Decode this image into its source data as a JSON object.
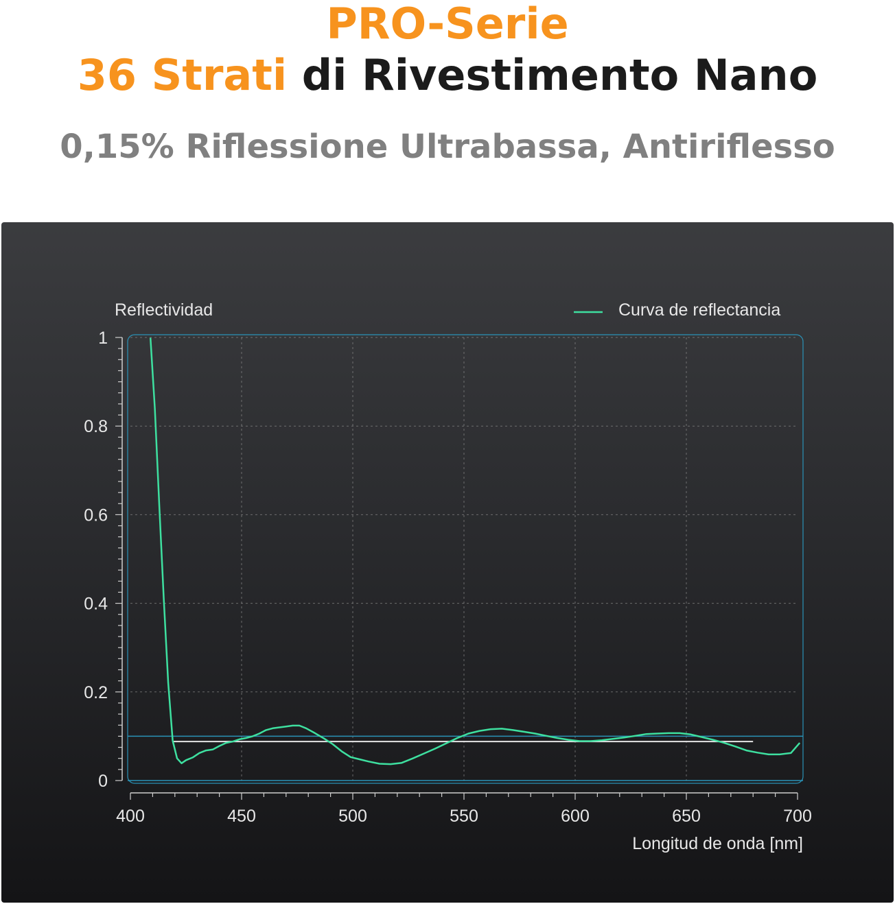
{
  "header": {
    "title_line1": "PRO-Serie",
    "title_line2_accent": "36 Strati",
    "title_line2_rest": " di Rivestimento Nano",
    "subtitle": "0,15% Riflessione Ultrabassa, Antiriflesso"
  },
  "colors": {
    "accent": "#f7931e",
    "curve": "#3ee0a0",
    "frame": "#2a93b8",
    "reference_line": "#e6e6e6"
  },
  "chart_data": {
    "type": "line",
    "ylabel": "Reflectividad",
    "xlabel": "Longitud de onda [nm]",
    "xlim": [
      400,
      700
    ],
    "ylim": [
      0,
      1
    ],
    "x_ticks": [
      400,
      450,
      500,
      550,
      600,
      650,
      700
    ],
    "y_ticks": [
      0,
      0.2,
      0.4,
      0.6,
      0.8,
      1
    ],
    "y_tick_labels": [
      "0",
      "0.2",
      "0.4",
      "0.6",
      "0.8",
      "1"
    ],
    "grid": true,
    "legend": "top-right",
    "series": [
      {
        "name": "Curva de reflectancia",
        "x": [
          409,
          411,
          413,
          415,
          417,
          419,
          421,
          423,
          425,
          428,
          431,
          434,
          437,
          440,
          443,
          446,
          449,
          452,
          455,
          458,
          461,
          464,
          467,
          470,
          473,
          476,
          479,
          483,
          487,
          491,
          495,
          499,
          503,
          507,
          512,
          517,
          522,
          527,
          532,
          537,
          542,
          547,
          552,
          557,
          562,
          567,
          572,
          577,
          582,
          587,
          592,
          597,
          602,
          607,
          612,
          617,
          622,
          627,
          632,
          637,
          642,
          647,
          652,
          657,
          662,
          667,
          672,
          677,
          682,
          687,
          692,
          697,
          701
        ],
        "y": [
          0.999,
          0.84,
          0.62,
          0.41,
          0.22,
          0.09,
          0.05,
          0.039,
          0.046,
          0.052,
          0.062,
          0.068,
          0.07,
          0.078,
          0.085,
          0.088,
          0.093,
          0.096,
          0.1,
          0.106,
          0.114,
          0.118,
          0.12,
          0.122,
          0.124,
          0.124,
          0.118,
          0.107,
          0.095,
          0.082,
          0.066,
          0.053,
          0.048,
          0.043,
          0.038,
          0.037,
          0.04,
          0.05,
          0.061,
          0.072,
          0.084,
          0.096,
          0.106,
          0.112,
          0.116,
          0.117,
          0.114,
          0.11,
          0.106,
          0.101,
          0.096,
          0.092,
          0.089,
          0.089,
          0.091,
          0.094,
          0.097,
          0.101,
          0.105,
          0.106,
          0.107,
          0.107,
          0.104,
          0.098,
          0.092,
          0.085,
          0.077,
          0.068,
          0.063,
          0.059,
          0.059,
          0.062,
          0.085
        ]
      }
    ],
    "reference_lines": [
      {
        "type": "segment",
        "x": [
          419,
          680
        ],
        "y": [
          0.088,
          0.088
        ]
      },
      {
        "type": "horizontal",
        "y": 0.1
      }
    ]
  }
}
